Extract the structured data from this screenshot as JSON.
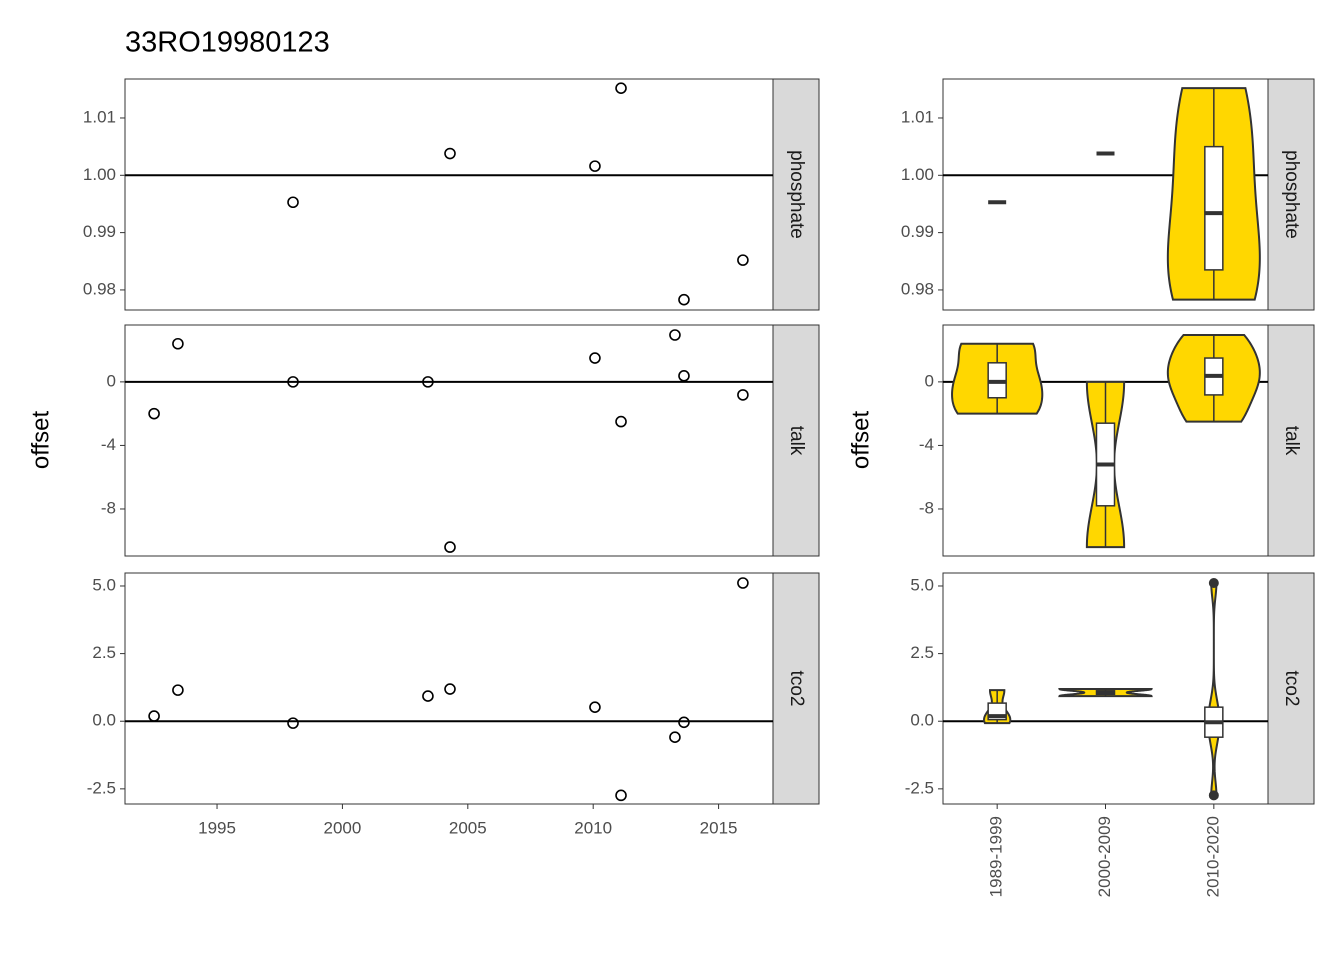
{
  "chart_data": [
    {
      "type": "scatter",
      "title": "33RO19980123",
      "y_label": "offset",
      "xlim": [
        1991.33,
        2017.17
      ],
      "xticks": [
        1995,
        2000,
        2005,
        2010,
        2015
      ],
      "color": "#000000",
      "panels": [
        {
          "strip": "phosphate",
          "ylim": [
            0.9765,
            1.0168
          ],
          "ref_line": 1,
          "yticks": [
            0.98,
            0.99,
            {
              "value": 1,
              "label": "1.00"
            },
            1.01
          ],
          "x": [
            1998.03,
            2004.29,
            2010.07,
            2011.11,
            2013.62,
            2015.97
          ],
          "values": [
            0.9953,
            1.0038,
            1.0016,
            1.0152,
            0.9783,
            0.9852
          ]
        },
        {
          "strip": "talk",
          "ylim": [
            -10.96,
            3.58
          ],
          "ref_line": 0,
          "yticks": [
            -8,
            -4,
            0
          ],
          "x": [
            1992.49,
            1993.44,
            1998.03,
            2003.41,
            2004.29,
            2010.07,
            2011.11,
            2013.26,
            2013.62,
            2015.97
          ],
          "values": [
            -2.0,
            2.4,
            0,
            0,
            -10.4,
            1.5,
            -2.5,
            2.95,
            0.38,
            -0.82
          ]
        },
        {
          "strip": "tco2",
          "ylim": [
            -3.06,
            5.48
          ],
          "ref_line": 0,
          "yticks": [
            {
              "value": -2.5,
              "label": "-2.5"
            },
            {
              "value": 0,
              "label": "0.0"
            },
            2.5,
            {
              "value": 5,
              "label": "5.0"
            }
          ],
          "x": [
            1992.49,
            1993.44,
            1998.03,
            2003.41,
            2004.29,
            2010.07,
            2011.11,
            2013.26,
            2013.62,
            2015.97
          ],
          "values": [
            0.19,
            1.15,
            -0.07,
            0.93,
            1.19,
            0.52,
            -2.74,
            -0.59,
            -0.04,
            5.11
          ]
        }
      ]
    },
    {
      "type": "violin",
      "y_label": "offset",
      "color": "#ffd700",
      "categories": [
        "1989-1999",
        "2000-2009",
        "2010-2020"
      ],
      "panels": [
        {
          "strip": "phosphate",
          "ylim": [
            0.9765,
            1.0168
          ],
          "ref_line": 1,
          "yticks": [
            0.98,
            0.99,
            {
              "value": 1,
              "label": "1.00"
            },
            1.01
          ],
          "boxes": [
            {
              "min": 0.9953,
              "q1": 0.9953,
              "median": 0.9953,
              "q3": 0.9953,
              "max": 0.9953
            },
            {
              "min": 1.0038,
              "q1": 1.0038,
              "median": 1.0038,
              "q3": 1.0038,
              "max": 1.0038
            },
            {
              "min": 0.9783,
              "q1": 0.9835,
              "median": 0.9934,
              "q3": 1.005,
              "max": 1.0152
            }
          ]
        },
        {
          "strip": "talk",
          "ylim": [
            -10.96,
            3.58
          ],
          "ref_line": 0,
          "yticks": [
            -8,
            -4,
            0
          ],
          "boxes": [
            {
              "min": -2.0,
              "q1": -1.0,
              "median": 0,
              "q3": 1.2,
              "max": 2.4
            },
            {
              "min": -10.4,
              "q1": -7.8,
              "median": -5.2,
              "q3": -2.6,
              "max": 0
            },
            {
              "min": -2.5,
              "q1": -0.82,
              "median": 0.38,
              "q3": 1.5,
              "max": 2.95
            }
          ]
        },
        {
          "strip": "tco2",
          "ylim": [
            -3.06,
            5.48
          ],
          "ref_line": 0,
          "yticks": [
            {
              "value": -2.5,
              "label": "-2.5"
            },
            {
              "value": 0,
              "label": "0.0"
            },
            2.5,
            {
              "value": 5,
              "label": "5.0"
            }
          ],
          "boxes": [
            {
              "min": -0.07,
              "q1": 0.06,
              "median": 0.19,
              "q3": 0.67,
              "max": 1.15
            },
            {
              "min": 0.93,
              "q1": 0.995,
              "median": 1.06,
              "q3": 1.125,
              "max": 1.19
            },
            {
              "min": -0.59,
              "q1": -0.59,
              "median": -0.04,
              "q3": 0.52,
              "max": 0.52,
              "outliers": [
                -2.74,
                5.11
              ]
            }
          ]
        }
      ]
    }
  ]
}
